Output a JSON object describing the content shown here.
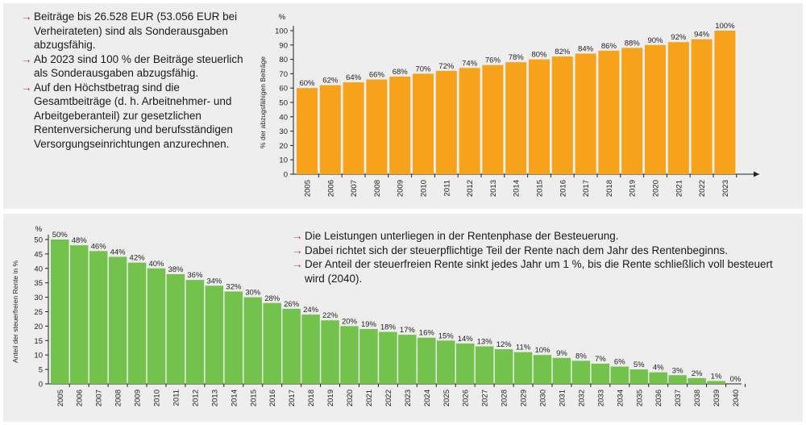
{
  "top_text": {
    "items": [
      "Beiträge bis 26.528 EUR (53.056 EUR bei Verheirateten) sind als Sonderausgaben abzugsfähig.",
      "Ab 2023 sind 100 % der Beiträge steuerlich als Sonderausgaben abzugsfähig.",
      "Auf den Höchstbetrag sind die Gesamtbeiträge (d. h. Arbeitnehmer- und Arbeitgeberanteil) zur gesetzlichen Rentenversicherung und berufsständigen Versorgungseinrichtungen anzurechnen."
    ]
  },
  "bottom_text": {
    "items": [
      "Die Leistungen unterliegen in der Rentenphase der Besteuerung.",
      "Dabei richtet sich der steuerpflichtige Teil der Rente nach dem Jahr des Rentenbeginns.",
      "Der Anteil der steuerfreien Rente sinkt jedes Jahr um 1 %, bis die Rente schließlich voll besteuert wird (2040)."
    ]
  },
  "colors": {
    "panel_bg": "#eeeeee",
    "arrow": "#d7261e",
    "bar_orange": "#f7a21b",
    "bar_green": "#72c24b"
  },
  "chart_data": [
    {
      "type": "bar",
      "unit_label": "%",
      "ylabel": "% der abzugsfähigen Beiträge",
      "ylim": [
        0,
        100
      ],
      "yticks": [
        0,
        10,
        20,
        30,
        40,
        50,
        60,
        70,
        80,
        90,
        100
      ],
      "categories": [
        "2005",
        "2006",
        "2007",
        "2008",
        "2009",
        "2010",
        "2011",
        "2012",
        "2013",
        "2014",
        "2015",
        "2016",
        "2017",
        "2018",
        "2019",
        "2020",
        "2021",
        "2022",
        "2023"
      ],
      "values": [
        60,
        62,
        64,
        66,
        68,
        70,
        72,
        74,
        76,
        78,
        80,
        82,
        84,
        86,
        88,
        90,
        92,
        94,
        100
      ],
      "value_labels": [
        "60%",
        "62%",
        "64%",
        "66%",
        "68%",
        "70%",
        "72%",
        "74%",
        "76%",
        "78%",
        "80%",
        "82%",
        "84%",
        "86%",
        "88%",
        "90%",
        "92%",
        "94%",
        "100%"
      ]
    },
    {
      "type": "bar",
      "unit_label": "%",
      "ylabel": "Anteil der steuerfreien Rente in %",
      "ylim": [
        0,
        50
      ],
      "yticks": [
        0,
        5,
        10,
        15,
        20,
        25,
        30,
        35,
        40,
        45,
        50
      ],
      "categories": [
        "2005",
        "2006",
        "2007",
        "2008",
        "2009",
        "2010",
        "2011",
        "2012",
        "2013",
        "2014",
        "2015",
        "2016",
        "2017",
        "2018",
        "2019",
        "2020",
        "2021",
        "2022",
        "2023",
        "2024",
        "2025",
        "2026",
        "2027",
        "2028",
        "2029",
        "2030",
        "2031",
        "2032",
        "2033",
        "2034",
        "2035",
        "2036",
        "2037",
        "2038",
        "2039",
        "2040"
      ],
      "values": [
        50,
        48,
        46,
        44,
        42,
        40,
        38,
        36,
        34,
        32,
        30,
        28,
        26,
        24,
        22,
        20,
        19,
        18,
        17,
        16,
        15,
        14,
        13,
        12,
        11,
        10,
        9,
        8,
        7,
        6,
        5,
        4,
        3,
        2,
        1,
        0
      ],
      "value_labels": [
        "50%",
        "48%",
        "46%",
        "44%",
        "42%",
        "40%",
        "38%",
        "36%",
        "34%",
        "32%",
        "30%",
        "28%",
        "26%",
        "24%",
        "22%",
        "20%",
        "19%",
        "18%",
        "17%",
        "16%",
        "15%",
        "14%",
        "13%",
        "12%",
        "11%",
        "10%",
        "9%",
        "8%",
        "7%",
        "6%",
        "5%",
        "4%",
        "3%",
        "2%",
        "1%",
        "0%"
      ]
    }
  ]
}
